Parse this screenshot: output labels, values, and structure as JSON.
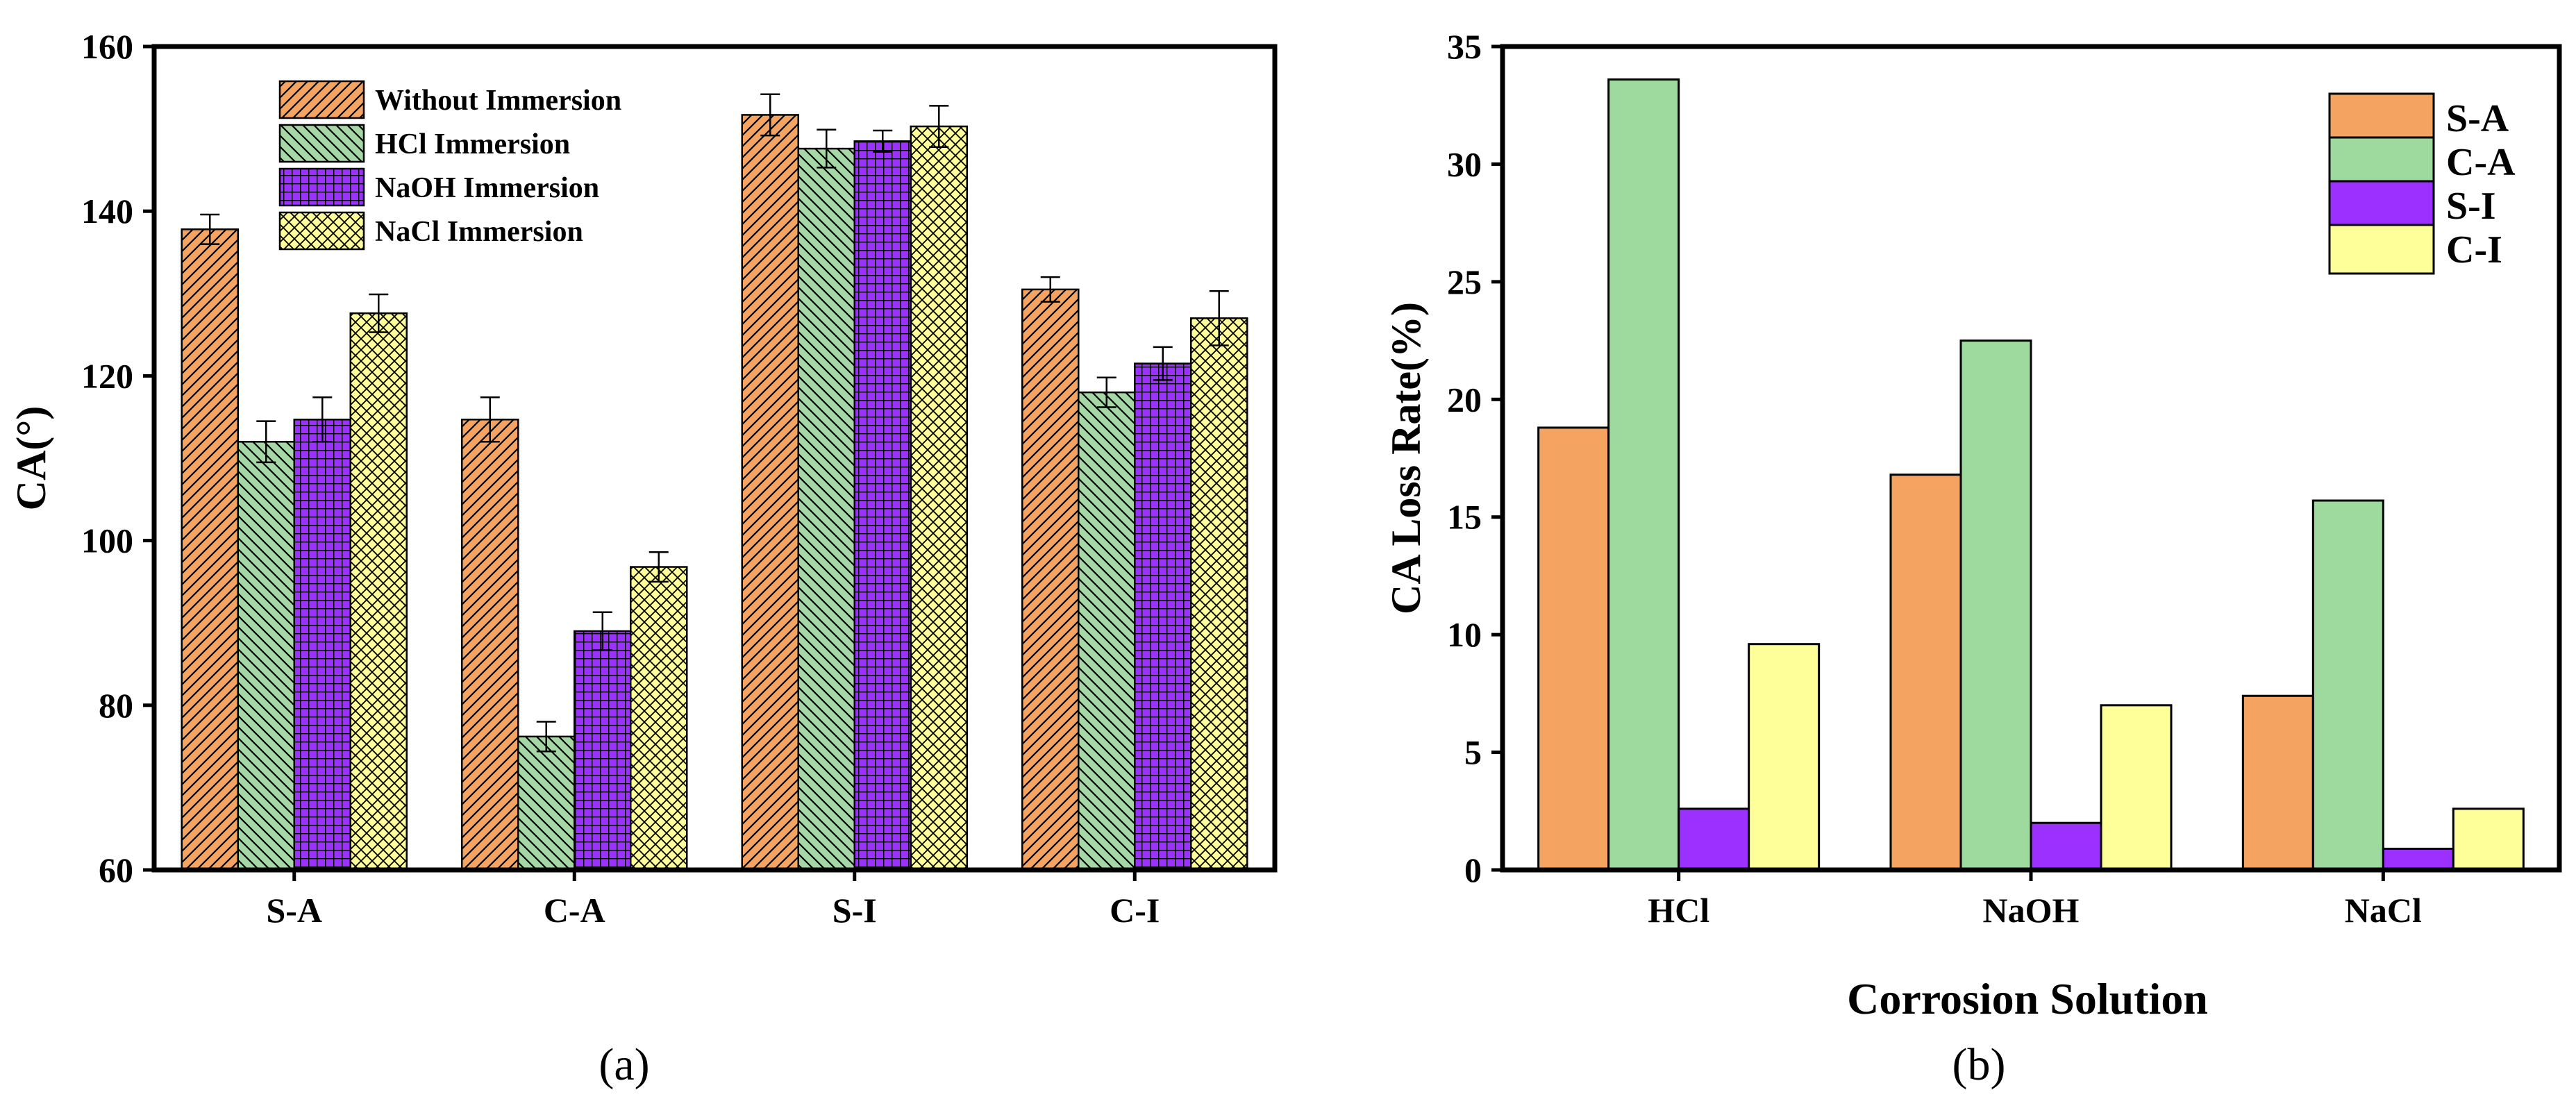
{
  "chart_data": [
    {
      "type": "bar",
      "panel_label": "(a)",
      "title": "",
      "xlabel": "",
      "ylabel": "CA(°)",
      "ylim": [
        60,
        160
      ],
      "yticks": [
        "60",
        "80",
        "100",
        "120",
        "140",
        "160"
      ],
      "categories": [
        "S-A",
        "C-A",
        "S-I",
        "C-I"
      ],
      "series": [
        {
          "name": "Without Immersion",
          "color": "#f4a460",
          "pattern": "diagonal",
          "values": [
            137.8,
            114.7,
            151.7,
            130.5
          ],
          "errors": [
            1.8,
            2.7,
            2.5,
            1.5
          ]
        },
        {
          "name": "HCl Immersion",
          "color": "#a5d8a5",
          "pattern": "backdiagonal",
          "values": [
            112.0,
            76.2,
            147.6,
            118.0
          ],
          "errors": [
            2.5,
            1.8,
            2.3,
            1.8
          ]
        },
        {
          "name": "NaOH Immersion",
          "color": "#9b30ff",
          "pattern": "grid",
          "values": [
            114.7,
            89.0,
            148.5,
            121.5
          ],
          "errors": [
            2.7,
            2.3,
            1.3,
            2.0
          ]
        },
        {
          "name": "NaCl Immersion",
          "color": "#ffff99",
          "pattern": "crosshatch",
          "values": [
            127.6,
            96.8,
            150.3,
            127.0
          ],
          "errors": [
            2.3,
            1.8,
            2.5,
            3.3
          ]
        }
      ],
      "legend_position": "top-left"
    },
    {
      "type": "bar",
      "panel_label": "(b)",
      "title": "",
      "xlabel": "Corrosion Solution",
      "ylabel": "CA Loss Rate(%)",
      "ylim": [
        0,
        35
      ],
      "yticks": [
        "0",
        "5",
        "10",
        "15",
        "20",
        "25",
        "30",
        "35"
      ],
      "categories": [
        "HCl",
        "NaOH",
        "NaCl"
      ],
      "series": [
        {
          "name": "S-A",
          "color": "#f4a460",
          "values": [
            18.8,
            16.8,
            7.4
          ]
        },
        {
          "name": "C-A",
          "color": "#9ed99e",
          "values": [
            33.6,
            22.5,
            15.7
          ]
        },
        {
          "name": "S-I",
          "color": "#9b30ff",
          "values": [
            2.6,
            2.0,
            0.9
          ]
        },
        {
          "name": "C-I",
          "color": "#ffff99",
          "values": [
            9.6,
            7.0,
            2.6
          ]
        }
      ],
      "legend_position": "top-right"
    }
  ]
}
